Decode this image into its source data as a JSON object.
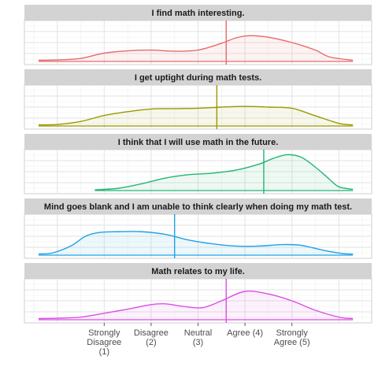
{
  "chart_data": {
    "type": "density",
    "facet_layout": "vertical",
    "x_ticks": [
      {
        "value": 1,
        "label": [
          "Strongly",
          "Disagree",
          "(1)"
        ]
      },
      {
        "value": 2,
        "label": [
          "Disagree",
          "(2)"
        ]
      },
      {
        "value": 3,
        "label": [
          "Neutral",
          "(3)"
        ]
      },
      {
        "value": 4,
        "label": [
          "Agree (4)"
        ]
      },
      {
        "value": 5,
        "label": [
          "Strongly",
          "Agree (5)"
        ]
      }
    ],
    "xlim": [
      -0.7,
      6.7
    ],
    "grid": true,
    "legend": "none",
    "panels": [
      {
        "title": "I find math interesting.",
        "color": "#E8696B",
        "mean": 3.6,
        "density": [
          [
            -0.4,
            0.03
          ],
          [
            0,
            0.04
          ],
          [
            0.5,
            0.08
          ],
          [
            1,
            0.22
          ],
          [
            1.5,
            0.28
          ],
          [
            2,
            0.3
          ],
          [
            2.5,
            0.27
          ],
          [
            3,
            0.3
          ],
          [
            3.5,
            0.48
          ],
          [
            3.8,
            0.62
          ],
          [
            4.1,
            0.68
          ],
          [
            4.5,
            0.64
          ],
          [
            5,
            0.5
          ],
          [
            5.5,
            0.3
          ],
          [
            5.8,
            0.12
          ],
          [
            6.3,
            0.03
          ]
        ]
      },
      {
        "title": "I get uptight during math tests.",
        "color": "#999900",
        "mean": 3.4,
        "density": [
          [
            -0.4,
            0.03
          ],
          [
            0,
            0.04
          ],
          [
            0.5,
            0.12
          ],
          [
            1,
            0.28
          ],
          [
            1.5,
            0.38
          ],
          [
            2,
            0.45
          ],
          [
            2.5,
            0.46
          ],
          [
            3,
            0.47
          ],
          [
            3.5,
            0.5
          ],
          [
            4,
            0.52
          ],
          [
            4.5,
            0.5
          ],
          [
            5,
            0.47
          ],
          [
            5.5,
            0.27
          ],
          [
            6,
            0.07
          ],
          [
            6.3,
            0.03
          ]
        ]
      },
      {
        "title": "I think that I will use math in the future.",
        "color": "#23B574",
        "mean": 4.4,
        "density": [
          [
            0.8,
            0.02
          ],
          [
            1.3,
            0.06
          ],
          [
            1.8,
            0.18
          ],
          [
            2.3,
            0.33
          ],
          [
            2.8,
            0.42
          ],
          [
            3.3,
            0.46
          ],
          [
            3.8,
            0.54
          ],
          [
            4.3,
            0.7
          ],
          [
            4.6,
            0.85
          ],
          [
            4.9,
            0.95
          ],
          [
            5.2,
            0.88
          ],
          [
            5.5,
            0.62
          ],
          [
            5.8,
            0.3
          ],
          [
            6,
            0.1
          ],
          [
            6.3,
            0.03
          ]
        ]
      },
      {
        "title": "Mind goes blank and I am unable to think clearly when doing my math test.",
        "color": "#1FA2E6",
        "mean": 2.5,
        "density": [
          [
            -0.4,
            0.03
          ],
          [
            -0.1,
            0.06
          ],
          [
            0.3,
            0.25
          ],
          [
            0.6,
            0.5
          ],
          [
            0.9,
            0.6
          ],
          [
            1.3,
            0.62
          ],
          [
            1.8,
            0.62
          ],
          [
            2.3,
            0.55
          ],
          [
            2.8,
            0.4
          ],
          [
            3.3,
            0.3
          ],
          [
            3.8,
            0.24
          ],
          [
            4.3,
            0.24
          ],
          [
            4.8,
            0.28
          ],
          [
            5.2,
            0.26
          ],
          [
            5.7,
            0.12
          ],
          [
            6.1,
            0.04
          ],
          [
            6.3,
            0.03
          ]
        ]
      },
      {
        "title": "Math relates to my life.",
        "color": "#DC4EE6",
        "mean": 3.6,
        "density": [
          [
            -0.4,
            0.03
          ],
          [
            0,
            0.04
          ],
          [
            0.5,
            0.07
          ],
          [
            1,
            0.17
          ],
          [
            1.5,
            0.28
          ],
          [
            2,
            0.4
          ],
          [
            2.3,
            0.42
          ],
          [
            2.7,
            0.35
          ],
          [
            3.1,
            0.32
          ],
          [
            3.5,
            0.5
          ],
          [
            4,
            0.75
          ],
          [
            4.5,
            0.68
          ],
          [
            5,
            0.5
          ],
          [
            5.5,
            0.25
          ],
          [
            6,
            0.07
          ],
          [
            6.3,
            0.03
          ]
        ]
      }
    ]
  }
}
